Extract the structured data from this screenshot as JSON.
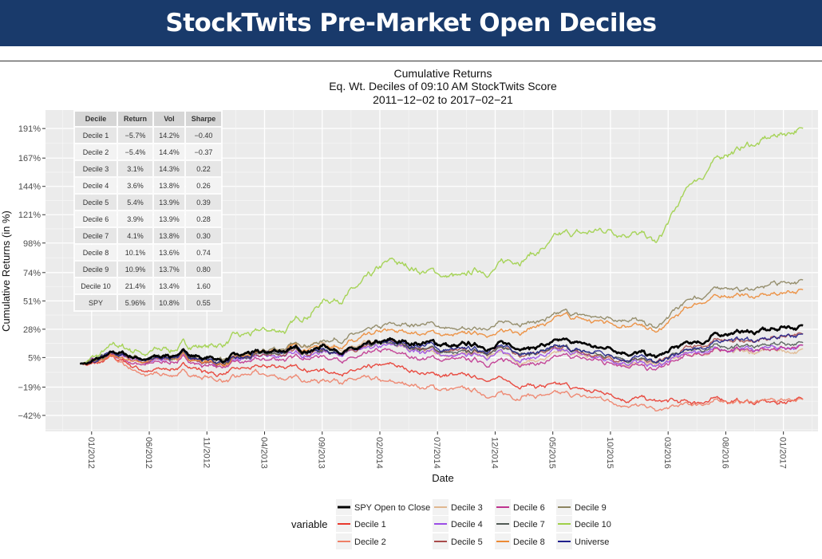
{
  "page": {
    "banner_title": "StockTwits Pre-Market Open Deciles"
  },
  "stats_table": {
    "headers": [
      "Decile",
      "Return",
      "Vol",
      "Sharpe"
    ],
    "rows": [
      [
        "Decile 1",
        "−5.7%",
        "14.2%",
        "−0.40"
      ],
      [
        "Decile 2",
        "−5.4%",
        "14.4%",
        "−0.37"
      ],
      [
        "Decile 3",
        "3.1%",
        "14.3%",
        "0.22"
      ],
      [
        "Decile 4",
        "3.6%",
        "13.8%",
        "0.26"
      ],
      [
        "Decile 5",
        "5.4%",
        "13.9%",
        "0.39"
      ],
      [
        "Decile 6",
        "3.9%",
        "13.9%",
        "0.28"
      ],
      [
        "Decile 7",
        "4.1%",
        "13.8%",
        "0.30"
      ],
      [
        "Decile 8",
        "10.1%",
        "13.6%",
        "0.74"
      ],
      [
        "Decile 9",
        "10.9%",
        "13.7%",
        "0.80"
      ],
      [
        "Decile 10",
        "21.4%",
        "13.4%",
        "1.60"
      ],
      [
        "SPY",
        "5.96%",
        "10.8%",
        "0.55"
      ]
    ]
  },
  "chart_data": {
    "type": "line",
    "title": "Cumulative Returns",
    "subtitle": [
      "Eq. Wt.  Deciles of 09:10 AM StockTwits Score",
      "2011−12−02 to 2017−02−21"
    ],
    "xlabel": "Date",
    "ylabel": "Cumulative Returns (in %)",
    "xlim": [
      "2011-09",
      "2017-04"
    ],
    "ylim": [
      -55,
      206
    ],
    "grid": true,
    "y_ticks": [
      {
        "value": 191,
        "label": "191%"
      },
      {
        "value": 167,
        "label": "167%"
      },
      {
        "value": 144,
        "label": "144%"
      },
      {
        "value": 121,
        "label": "121%"
      },
      {
        "value": 98,
        "label": "98%"
      },
      {
        "value": 74,
        "label": "74%"
      },
      {
        "value": 51,
        "label": "51%"
      },
      {
        "value": 28,
        "label": "28%"
      },
      {
        "value": 5,
        "label": "5%"
      },
      {
        "value": -19,
        "label": "−19%"
      },
      {
        "value": -42,
        "label": "−42%"
      }
    ],
    "x_ticks": [
      {
        "value": "2012-01",
        "label": "01/2012"
      },
      {
        "value": "2012-06",
        "label": "06/2012"
      },
      {
        "value": "2012-11",
        "label": "11/2012"
      },
      {
        "value": "2013-04",
        "label": "04/2013"
      },
      {
        "value": "2013-09",
        "label": "09/2013"
      },
      {
        "value": "2014-02",
        "label": "02/2014"
      },
      {
        "value": "2014-07",
        "label": "07/2014"
      },
      {
        "value": "2014-12",
        "label": "12/2014"
      },
      {
        "value": "2015-05",
        "label": "05/2015"
      },
      {
        "value": "2015-10",
        "label": "10/2015"
      },
      {
        "value": "2016-03",
        "label": "03/2016"
      },
      {
        "value": "2016-08",
        "label": "08/2016"
      },
      {
        "value": "2017-01",
        "label": "01/2017"
      }
    ],
    "legend": {
      "title": "variable",
      "position": "bottom"
    },
    "series_x": [
      "2011-12",
      "2012-03",
      "2012-06",
      "2012-09",
      "2012-12",
      "2013-03",
      "2013-06",
      "2013-09",
      "2013-12",
      "2014-03",
      "2014-06",
      "2014-09",
      "2014-12",
      "2015-03",
      "2015-06",
      "2015-09",
      "2015-12",
      "2016-02",
      "2016-05",
      "2016-08",
      "2016-11",
      "2017-02"
    ],
    "series": [
      {
        "name": "SPY Open to Close",
        "color": "#000000",
        "values": [
          0,
          7,
          4,
          8,
          3,
          7,
          11,
          14,
          12,
          16,
          18,
          13,
          16,
          14,
          17,
          12,
          10,
          4,
          16,
          26,
          26,
          31
        ]
      },
      {
        "name": "Decile 1",
        "color": "#e8392d",
        "values": [
          0,
          2,
          -6,
          -3,
          -8,
          -4,
          -2,
          -4,
          -6,
          -4,
          -8,
          -10,
          -12,
          -16,
          -20,
          -24,
          -26,
          -30,
          -31,
          -30,
          -32,
          -29
        ]
      },
      {
        "name": "Decile 2",
        "color": "#ee7f67",
        "values": [
          0,
          3,
          -10,
          -8,
          -14,
          -10,
          -12,
          -14,
          -12,
          -18,
          -20,
          -22,
          -26,
          -24,
          -27,
          -30,
          -32,
          -38,
          -34,
          -30,
          -31,
          -29
        ]
      },
      {
        "name": "Decile 3",
        "color": "#e0b890",
        "values": [
          0,
          6,
          3,
          7,
          1,
          6,
          12,
          17,
          13,
          14,
          10,
          5,
          8,
          4,
          7,
          5,
          2,
          -2,
          8,
          12,
          10,
          12
        ]
      },
      {
        "name": "Decile 4",
        "color": "#9b4de6",
        "values": [
          0,
          5,
          2,
          6,
          0,
          4,
          8,
          10,
          9,
          13,
          10,
          5,
          8,
          6,
          8,
          4,
          3,
          -5,
          8,
          13,
          11,
          15
        ]
      },
      {
        "name": "Decile 5",
        "color": "#a84b4b",
        "values": [
          0,
          6,
          2,
          6,
          0,
          4,
          9,
          11,
          10,
          15,
          12,
          7,
          11,
          9,
          11,
          6,
          5,
          -1,
          12,
          20,
          19,
          24
        ]
      },
      {
        "name": "Decile 6",
        "color": "#c0348f",
        "values": [
          0,
          4,
          0,
          4,
          -3,
          1,
          4,
          6,
          5,
          8,
          6,
          1,
          3,
          1,
          3,
          1,
          0,
          -6,
          6,
          12,
          11,
          15
        ]
      },
      {
        "name": "Decile 7",
        "color": "#505a55",
        "values": [
          0,
          6,
          3,
          6,
          1,
          5,
          10,
          12,
          11,
          15,
          12,
          8,
          11,
          9,
          11,
          7,
          6,
          -1,
          10,
          16,
          14,
          17
        ]
      },
      {
        "name": "Decile 8",
        "color": "#ec8a35",
        "values": [
          0,
          5,
          2,
          6,
          1,
          6,
          11,
          15,
          18,
          24,
          26,
          22,
          26,
          30,
          36,
          32,
          34,
          24,
          46,
          55,
          54,
          60
        ]
      },
      {
        "name": "Decile 9",
        "color": "#8d8560",
        "values": [
          0,
          6,
          3,
          8,
          3,
          8,
          14,
          19,
          24,
          30,
          32,
          26,
          32,
          35,
          40,
          36,
          38,
          28,
          52,
          62,
          61,
          68
        ]
      },
      {
        "name": "Decile 10",
        "color": "#9fd048",
        "values": [
          0,
          12,
          10,
          14,
          16,
          22,
          30,
          50,
          62,
          80,
          76,
          68,
          78,
          90,
          102,
          108,
          110,
          95,
          145,
          170,
          180,
          191
        ]
      },
      {
        "name": "Universe",
        "color": "#20208c",
        "values": [
          0,
          6,
          3,
          7,
          1,
          6,
          11,
          13,
          12,
          16,
          14,
          9,
          12,
          10,
          12,
          8,
          7,
          0,
          12,
          20,
          19,
          24
        ]
      }
    ]
  }
}
